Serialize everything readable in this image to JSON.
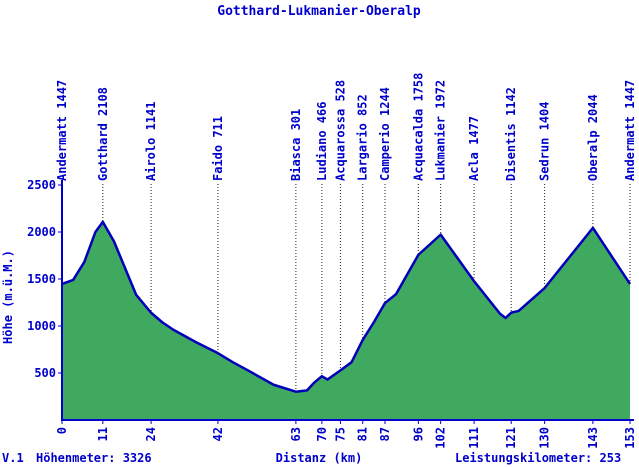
{
  "colors": {
    "text": "#0000cc",
    "axis": "#0000cc",
    "line": "#0000bb",
    "fill": "#3fa95f",
    "dotted": "#222222",
    "background": "#ffffff"
  },
  "footer": {
    "version": "V.1",
    "hoehenmeter": "Höhenmeter: 3326",
    "leistungskilometer": "Leistungskilometer: 253"
  },
  "chart_data": {
    "type": "area",
    "title": "Gotthard-Lukmanier-Oberalp",
    "xlabel": "Distanz (km)",
    "ylabel": "Höhe (m.ü.M.)",
    "xlim": [
      0,
      153
    ],
    "ylim": [
      0,
      2500
    ],
    "y_ticks": [
      500,
      1000,
      1500,
      2000,
      2500
    ],
    "x_ticks": [
      0,
      11,
      24,
      42,
      63,
      70,
      75,
      81,
      87,
      96,
      102,
      111,
      121,
      130,
      143,
      153
    ],
    "grid": false,
    "legend": "none",
    "waypoints": [
      {
        "name": "Andermatt",
        "elevation": 1447,
        "km": 0
      },
      {
        "name": "Gotthard",
        "elevation": 2108,
        "km": 11
      },
      {
        "name": "Airolo",
        "elevation": 1141,
        "km": 24
      },
      {
        "name": "Faido",
        "elevation": 711,
        "km": 42
      },
      {
        "name": "Biasca",
        "elevation": 301,
        "km": 63
      },
      {
        "name": "Ludiano",
        "elevation": 466,
        "km": 70
      },
      {
        "name": "Acquarossa",
        "elevation": 528,
        "km": 75
      },
      {
        "name": "Largario",
        "elevation": 852,
        "km": 81
      },
      {
        "name": "Camperio",
        "elevation": 1244,
        "km": 87
      },
      {
        "name": "Acquacalda",
        "elevation": 1758,
        "km": 96
      },
      {
        "name": "Lukmanier",
        "elevation": 1972,
        "km": 102
      },
      {
        "name": "Acla",
        "elevation": 1477,
        "km": 111
      },
      {
        "name": "Disentis",
        "elevation": 1142,
        "km": 121
      },
      {
        "name": "Sedrun",
        "elevation": 1404,
        "km": 130
      },
      {
        "name": "Oberalp",
        "elevation": 2044,
        "km": 143
      },
      {
        "name": "Andermatt",
        "elevation": 1447,
        "km": 153
      }
    ],
    "profile": [
      [
        0,
        1447
      ],
      [
        3,
        1490
      ],
      [
        6,
        1680
      ],
      [
        9,
        2000
      ],
      [
        11,
        2108
      ],
      [
        14,
        1900
      ],
      [
        20,
        1330
      ],
      [
        24,
        1141
      ],
      [
        27,
        1040
      ],
      [
        30,
        960
      ],
      [
        36,
        830
      ],
      [
        42,
        711
      ],
      [
        46,
        615
      ],
      [
        50,
        530
      ],
      [
        57,
        375
      ],
      [
        63,
        301
      ],
      [
        66,
        315
      ],
      [
        68,
        400
      ],
      [
        70,
        466
      ],
      [
        71.5,
        430
      ],
      [
        75,
        528
      ],
      [
        78,
        615
      ],
      [
        81,
        852
      ],
      [
        84,
        1040
      ],
      [
        87,
        1244
      ],
      [
        90,
        1340
      ],
      [
        96,
        1758
      ],
      [
        102,
        1972
      ],
      [
        111,
        1477
      ],
      [
        118,
        1130
      ],
      [
        119.5,
        1085
      ],
      [
        121,
        1142
      ],
      [
        123,
        1160
      ],
      [
        130,
        1404
      ],
      [
        143,
        2044
      ],
      [
        153,
        1447
      ]
    ]
  }
}
